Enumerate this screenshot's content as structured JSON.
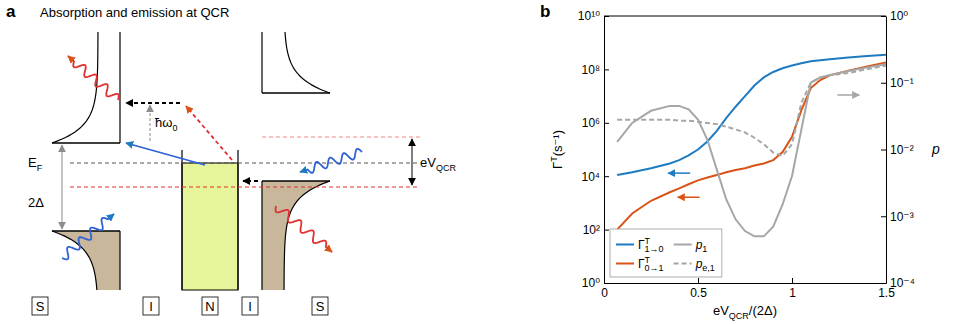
{
  "diagram": {
    "panel_label": "a",
    "title": "Absorption and emission at QCR",
    "hbar_omega": {
      "base": "ħω",
      "sub": "0"
    },
    "fermi": {
      "base": "E",
      "sub": "F"
    },
    "gap": "2Δ",
    "bias": {
      "base": "eV",
      "sub": "QCR"
    },
    "layers": [
      "S",
      "I",
      "N",
      "I",
      "S"
    ]
  },
  "chart_data": {
    "type": "line",
    "panel_label": "b",
    "x_label": {
      "base": "eV",
      "sub": "QCR",
      "tail": "/(2Δ)"
    },
    "y_label": {
      "base": "Γ",
      "sup": "T",
      "tail": "(s⁻¹)"
    },
    "y2_label": "p",
    "log": "y",
    "grid": false,
    "legend": "lower left",
    "xlim": [
      0,
      1.5
    ],
    "xticks": [
      0,
      0.5,
      1,
      1.5
    ],
    "ylim": [
      1,
      10000000000
    ],
    "yticks": [
      {
        "value": 1,
        "label": "10⁰"
      },
      {
        "value": 100,
        "label": "10²"
      },
      {
        "value": 10000,
        "label": "10⁴"
      },
      {
        "value": 1000000,
        "label": "10⁶"
      },
      {
        "value": 100000000,
        "label": "10⁸"
      },
      {
        "value": 10000000000,
        "label": "10¹⁰"
      }
    ],
    "y2lim": [
      0.0001,
      1
    ],
    "y2ticks": [
      {
        "value": 0.0001,
        "label": "10⁻⁴"
      },
      {
        "value": 0.001,
        "label": "10⁻³"
      },
      {
        "value": 0.01,
        "label": "10⁻²"
      },
      {
        "value": 0.1,
        "label": "10⁻¹"
      },
      {
        "value": 1,
        "label": "10⁰"
      }
    ],
    "x": [
      0.07,
      0.15,
      0.25,
      0.35,
      0.4,
      0.45,
      0.5,
      0.55,
      0.6,
      0.65,
      0.7,
      0.75,
      0.8,
      0.85,
      0.9,
      0.95,
      1.0,
      1.05,
      1.1,
      1.15,
      1.2,
      1.3,
      1.4,
      1.5
    ],
    "series": [
      {
        "name": {
          "base": "Γ",
          "sup": "T",
          "sub": "1→0"
        },
        "color": "#1f7bc1",
        "line_style": "solid",
        "values": [
          11000,
          14000,
          20000,
          30000,
          40000,
          60000,
          100000,
          200000,
          500000,
          1500000,
          4000000,
          10000000,
          25000000,
          50000000,
          80000000,
          110000000,
          140000000,
          170000000,
          200000000,
          220000000,
          240000000,
          280000000,
          320000000,
          350000000
        ]
      },
      {
        "name": {
          "base": "Γ",
          "sup": "T",
          "sub": "0→1"
        },
        "color": "#d95319",
        "line_style": "solid",
        "values": [
          100,
          400,
          1200,
          2500,
          3500,
          5000,
          7000,
          9000,
          11000,
          14000,
          17000,
          20000,
          25000,
          30000,
          40000,
          80000,
          300000,
          3000000,
          20000000,
          40000000,
          60000000,
          90000000,
          130000000,
          180000000
        ]
      },
      {
        "name": {
          "base": "p",
          "sub": "1"
        },
        "color": "#a6a6a6",
        "line_style": "solid",
        "axis": "y2",
        "values": [
          0.013,
          0.025,
          0.038,
          0.045,
          0.045,
          0.04,
          0.028,
          0.014,
          0.005,
          0.0018,
          0.0009,
          0.0006,
          0.0005,
          0.0005,
          0.0007,
          0.0015,
          0.004,
          0.02,
          0.1,
          0.12,
          0.13,
          0.15,
          0.17,
          0.19
        ]
      },
      {
        "name": {
          "base": "p",
          "sub": "e,1"
        },
        "color": "#a6a6a6",
        "line_style": "dashed",
        "axis": "y2",
        "values": [
          0.028,
          0.028,
          0.028,
          0.028,
          0.027,
          0.027,
          0.026,
          0.025,
          0.024,
          0.022,
          0.02,
          0.018,
          0.015,
          0.012,
          0.009,
          0.008,
          0.012,
          0.05,
          0.1,
          0.12,
          0.13,
          0.14,
          0.16,
          0.18
        ]
      }
    ]
  }
}
